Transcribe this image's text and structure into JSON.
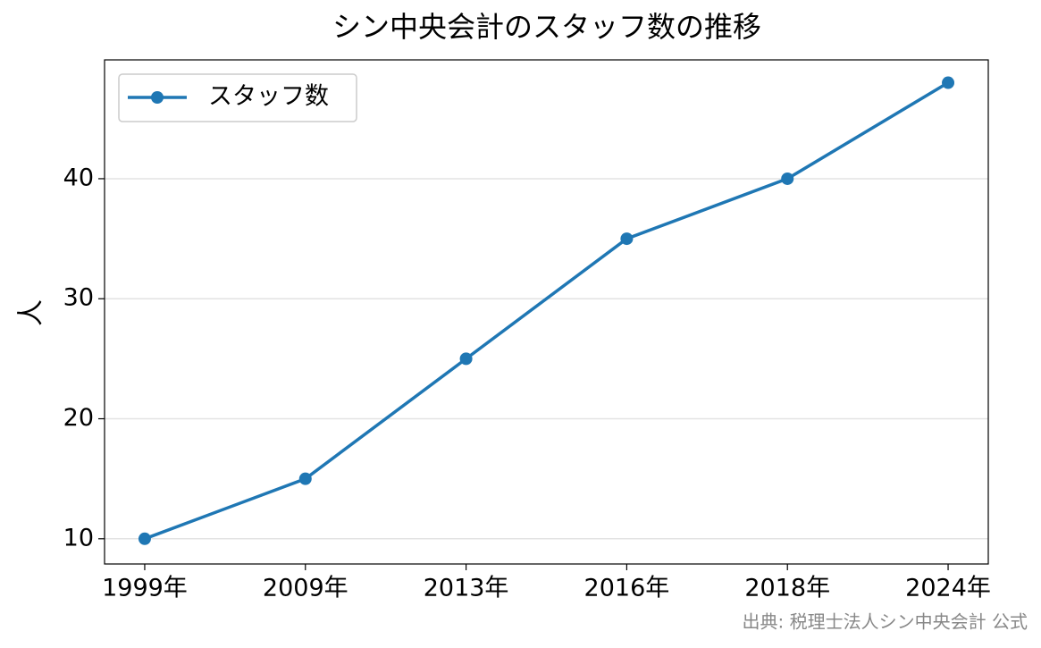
{
  "chart_data": {
    "type": "line",
    "title": "シン中央会計のスタッフ数の推移",
    "categories": [
      "1999年",
      "2009年",
      "2013年",
      "2016年",
      "2018年",
      "2024年"
    ],
    "series": [
      {
        "name": "スタッフ数",
        "color": "#1f77b4",
        "values": [
          10,
          15,
          25,
          35,
          40,
          48
        ]
      }
    ],
    "ylabel": "人",
    "ylim": [
      7.9,
      49.9
    ],
    "yticks": [
      10,
      20,
      30,
      40
    ],
    "grid": true,
    "legend": "upper left",
    "source": "出典: 税理士法人シン中央会計 公式"
  }
}
